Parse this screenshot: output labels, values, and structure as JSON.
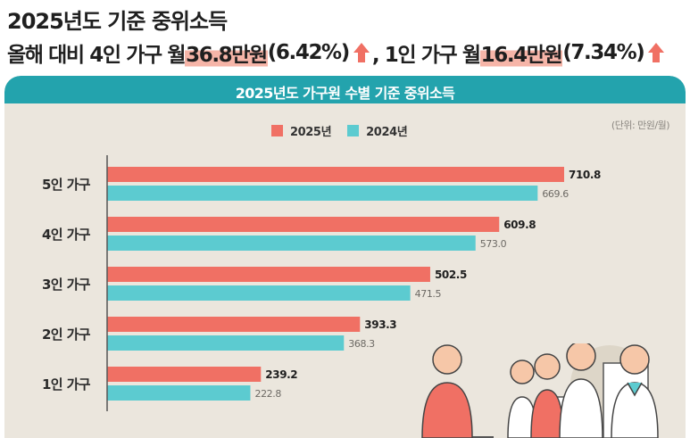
{
  "headline": {
    "title": "2025년도 기준 중위소득",
    "subtitle_prefix": "올해 대비 4인 가구 월 ",
    "subtitle_highlight1": "36.8만원",
    "subtitle_pct1": "(6.42%)",
    "subtitle_mid": ", 1인 가구 월 ",
    "subtitle_highlight2": "16.4만원",
    "subtitle_pct2": "(7.34%)"
  },
  "panel": {
    "title": "2025년도 가구원 수별 기준 중위소득",
    "unit": "(단위: 만원/월)"
  },
  "colors": {
    "series_2025": "#f07064",
    "series_2024": "#5ccbd0",
    "header": "#23a3ad",
    "panel_bg": "#ebe6dd",
    "arrow": "#f07064"
  },
  "chart_data": {
    "type": "bar",
    "orientation": "horizontal",
    "title": "2025년도 가구원 수별 기준 중위소득",
    "unit": "(단위: 만원/월)",
    "categories": [
      "5인 가구",
      "4인 가구",
      "3인 가구",
      "2인 가구",
      "1인 가구"
    ],
    "series": [
      {
        "name": "2025년",
        "values": [
          710.8,
          609.8,
          502.5,
          393.3,
          239.2
        ]
      },
      {
        "name": "2024년",
        "values": [
          669.6,
          573.0,
          471.5,
          368.3,
          222.8
        ]
      }
    ],
    "value_labels_2025": [
      "710.8",
      "609.8",
      "502.5",
      "393.3",
      "239.2"
    ],
    "value_labels_2024": [
      "669.6",
      "573.0",
      "471.5",
      "368.3",
      "222.8"
    ],
    "xlim": [
      0,
      710.8
    ],
    "legend_placement": "top-center",
    "grid": false
  }
}
